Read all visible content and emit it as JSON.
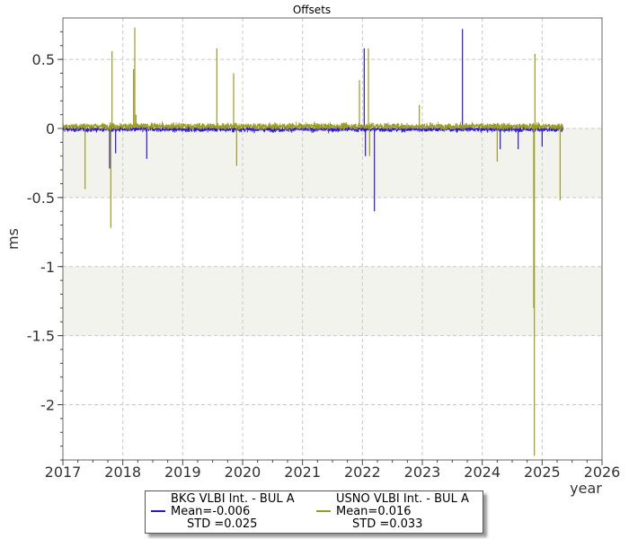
{
  "chart_data": {
    "type": "line",
    "title": "Offsets",
    "xlabel": "year",
    "ylabel": "ms",
    "xlim": [
      2017,
      2026
    ],
    "ylim": [
      -2.4,
      0.8
    ],
    "x_ticks": [
      "2017",
      "2018",
      "2019",
      "2020",
      "2021",
      "2022",
      "2023",
      "2024",
      "2025",
      "2026"
    ],
    "y_ticks": [
      "0.5",
      "0",
      "-0.5",
      "-1",
      "-1.5",
      "-2"
    ],
    "y_tick_values": [
      0.5,
      0,
      -0.5,
      -1,
      -1.5,
      -2
    ],
    "grid": true,
    "shaded_bands": [
      [
        -0.5,
        0
      ],
      [
        -1.5,
        -1
      ]
    ],
    "legend_position": "bottom-center",
    "series": [
      {
        "name": "BKG VLBI Int. - BUL A",
        "mean_label": "Mean=-0.006",
        "std_label": "STD =0.025",
        "color": "#2a16d8",
        "mean": -0.006,
        "std": 0.025,
        "spikes": [
          {
            "x": 2017.78,
            "y": -0.29
          },
          {
            "x": 2017.88,
            "y": -0.18
          },
          {
            "x": 2018.4,
            "y": -0.22
          },
          {
            "x": 2022.03,
            "y": 0.58
          },
          {
            "x": 2022.05,
            "y": -0.2
          },
          {
            "x": 2022.2,
            "y": -0.6
          },
          {
            "x": 2023.67,
            "y": 0.72
          },
          {
            "x": 2024.3,
            "y": -0.15
          },
          {
            "x": 2024.6,
            "y": -0.15
          },
          {
            "x": 2025.0,
            "y": -0.13
          }
        ]
      },
      {
        "name": "USNO VLBI Int. - BUL A",
        "mean_label": "Mean=0.016",
        "std_label": "STD =0.033",
        "color": "#9b9c1e",
        "mean": 0.016,
        "std": 0.033,
        "spikes": [
          {
            "x": 2017.37,
            "y": -0.44
          },
          {
            "x": 2017.8,
            "y": -0.72
          },
          {
            "x": 2017.82,
            "y": 0.56
          },
          {
            "x": 2018.18,
            "y": 0.43
          },
          {
            "x": 2018.2,
            "y": 0.73
          },
          {
            "x": 2018.22,
            "y": 0.1
          },
          {
            "x": 2019.57,
            "y": 0.58
          },
          {
            "x": 2019.85,
            "y": 0.4
          },
          {
            "x": 2019.9,
            "y": -0.27
          },
          {
            "x": 2021.95,
            "y": 0.35
          },
          {
            "x": 2022.1,
            "y": 0.58
          },
          {
            "x": 2022.12,
            "y": -0.2
          },
          {
            "x": 2022.95,
            "y": 0.17
          },
          {
            "x": 2024.25,
            "y": -0.24
          },
          {
            "x": 2024.86,
            "y": -1.3
          },
          {
            "x": 2024.87,
            "y": -2.37
          },
          {
            "x": 2024.88,
            "y": 0.54
          },
          {
            "x": 2025.3,
            "y": -0.52
          }
        ]
      }
    ]
  }
}
